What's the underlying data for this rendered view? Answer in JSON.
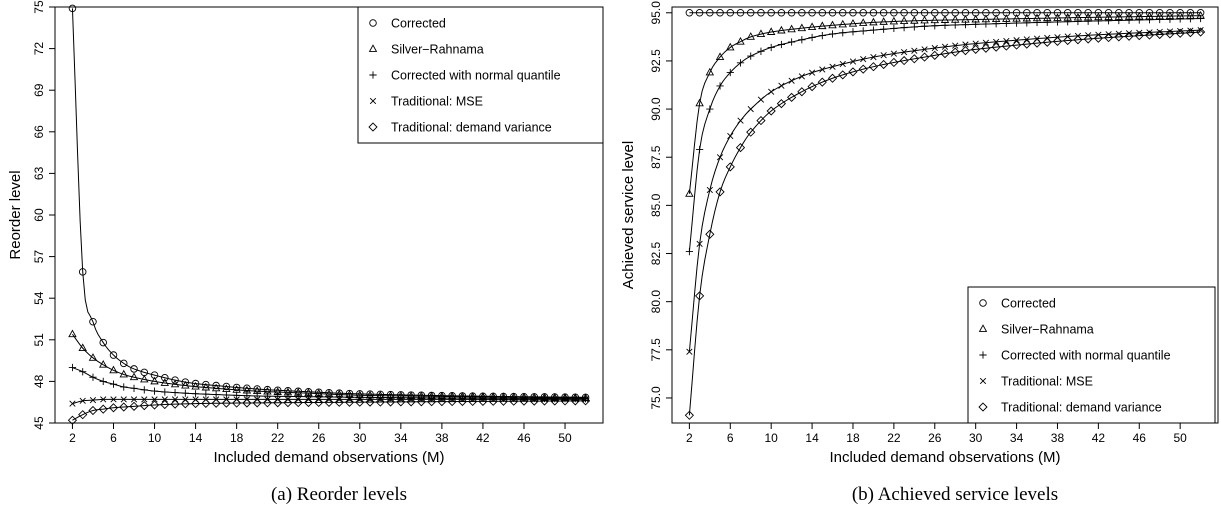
{
  "chart_data": [
    {
      "type": "line",
      "caption": "(a) Reorder levels",
      "xlabel": "Included demand observations (M)",
      "ylabel": "Reorder level",
      "xlim": [
        2,
        52
      ],
      "ylim": [
        45,
        75
      ],
      "xticks": [
        2,
        6,
        10,
        14,
        18,
        22,
        26,
        30,
        34,
        38,
        42,
        46,
        50
      ],
      "yticks": [
        45,
        48,
        51,
        54,
        57,
        60,
        63,
        66,
        69,
        72,
        75
      ],
      "legend_position": "top-right",
      "grid": false,
      "series": [
        {
          "name": "Corrected",
          "marker": "circle",
          "values": [
            [
              2,
              74.9
            ],
            [
              3,
              55.9
            ],
            [
              4,
              52.3
            ],
            [
              5,
              50.8
            ],
            [
              6,
              49.9
            ],
            [
              7,
              49.3
            ],
            [
              8,
              48.9
            ],
            [
              10,
              48.45
            ],
            [
              13,
              47.95
            ],
            [
              16,
              47.7
            ],
            [
              20,
              47.45
            ],
            [
              25,
              47.25
            ],
            [
              30,
              47.1
            ],
            [
              40,
              46.95
            ],
            [
              52,
              46.85
            ]
          ]
        },
        {
          "name": "Silver−Rahnama",
          "marker": "triangle",
          "values": [
            [
              2,
              51.4
            ],
            [
              3,
              50.4
            ],
            [
              4,
              49.7
            ],
            [
              5,
              49.2
            ],
            [
              6,
              48.8
            ],
            [
              7,
              48.5
            ],
            [
              8,
              48.3
            ],
            [
              10,
              48.0
            ],
            [
              13,
              47.7
            ],
            [
              16,
              47.5
            ],
            [
              20,
              47.3
            ],
            [
              25,
              47.15
            ],
            [
              30,
              47.0
            ],
            [
              40,
              46.9
            ],
            [
              52,
              46.8
            ]
          ]
        },
        {
          "name": "Corrected with normal quantile",
          "marker": "plus",
          "values": [
            [
              2,
              49.0
            ],
            [
              3,
              48.7
            ],
            [
              4,
              48.3
            ],
            [
              5,
              48.0
            ],
            [
              6,
              47.8
            ],
            [
              7,
              47.6
            ],
            [
              8,
              47.5
            ],
            [
              10,
              47.3
            ],
            [
              13,
              47.15
            ],
            [
              16,
              47.05
            ],
            [
              20,
              46.95
            ],
            [
              25,
              46.9
            ],
            [
              30,
              46.85
            ],
            [
              40,
              46.8
            ],
            [
              52,
              46.75
            ]
          ]
        },
        {
          "name": "Traditional: MSE",
          "marker": "cross",
          "values": [
            [
              2,
              46.4
            ],
            [
              3,
              46.6
            ],
            [
              4,
              46.65
            ],
            [
              5,
              46.7
            ],
            [
              6,
              46.7
            ],
            [
              8,
              46.7
            ],
            [
              10,
              46.7
            ],
            [
              16,
              46.7
            ],
            [
              25,
              46.7
            ],
            [
              40,
              46.7
            ],
            [
              52,
              46.7
            ]
          ]
        },
        {
          "name": "Traditional: demand variance",
          "marker": "diamond",
          "values": [
            [
              2,
              45.2
            ],
            [
              3,
              45.6
            ],
            [
              4,
              45.9
            ],
            [
              5,
              46.0
            ],
            [
              6,
              46.1
            ],
            [
              8,
              46.2
            ],
            [
              10,
              46.3
            ],
            [
              14,
              46.4
            ],
            [
              20,
              46.45
            ],
            [
              30,
              46.5
            ],
            [
              40,
              46.55
            ],
            [
              52,
              46.6
            ]
          ]
        }
      ]
    },
    {
      "type": "line",
      "caption": "(b) Achieved service levels",
      "xlabel": "Included demand observations (M)",
      "ylabel": "Achieved service level",
      "xlim": [
        2,
        52
      ],
      "ylim": [
        73.7,
        95.3
      ],
      "xticks": [
        2,
        6,
        10,
        14,
        18,
        22,
        26,
        30,
        34,
        38,
        42,
        46,
        50
      ],
      "yticks": [
        75.0,
        77.5,
        80.0,
        82.5,
        85.0,
        87.5,
        90.0,
        92.5,
        95.0
      ],
      "ytick_labels": [
        "75.0",
        "77.5",
        "80.0",
        "82.5",
        "85.0",
        "87.5",
        "90.0",
        "92.5",
        "95.0"
      ],
      "legend_position": "bottom-right",
      "grid": false,
      "series": [
        {
          "name": "Corrected",
          "marker": "circle",
          "values": [
            [
              2,
              95.0
            ],
            [
              10,
              95.0
            ],
            [
              20,
              95.0
            ],
            [
              30,
              95.0
            ],
            [
              40,
              95.0
            ],
            [
              52,
              95.0
            ]
          ]
        },
        {
          "name": "Silver−Rahnama",
          "marker": "triangle",
          "values": [
            [
              2,
              85.6
            ],
            [
              3,
              90.3
            ],
            [
              4,
              91.9
            ],
            [
              5,
              92.7
            ],
            [
              6,
              93.2
            ],
            [
              7,
              93.5
            ],
            [
              8,
              93.75
            ],
            [
              10,
              94.0
            ],
            [
              13,
              94.2
            ],
            [
              16,
              94.35
            ],
            [
              20,
              94.5
            ],
            [
              25,
              94.6
            ],
            [
              30,
              94.65
            ],
            [
              40,
              94.75
            ],
            [
              52,
              94.85
            ]
          ]
        },
        {
          "name": "Corrected with normal quantile",
          "marker": "plus",
          "values": [
            [
              2,
              82.6
            ],
            [
              3,
              87.9
            ],
            [
              4,
              90.0
            ],
            [
              5,
              91.2
            ],
            [
              6,
              91.9
            ],
            [
              7,
              92.4
            ],
            [
              8,
              92.75
            ],
            [
              10,
              93.2
            ],
            [
              13,
              93.6
            ],
            [
              16,
              93.9
            ],
            [
              20,
              94.1
            ],
            [
              25,
              94.3
            ],
            [
              30,
              94.4
            ],
            [
              40,
              94.55
            ],
            [
              52,
              94.7
            ]
          ]
        },
        {
          "name": "Traditional: MSE",
          "marker": "cross",
          "values": [
            [
              2,
              77.4
            ],
            [
              3,
              83.0
            ],
            [
              4,
              85.8
            ],
            [
              5,
              87.5
            ],
            [
              6,
              88.6
            ],
            [
              7,
              89.4
            ],
            [
              8,
              90.0
            ],
            [
              10,
              90.9
            ],
            [
              13,
              91.7
            ],
            [
              16,
              92.2
            ],
            [
              20,
              92.7
            ],
            [
              25,
              93.1
            ],
            [
              30,
              93.4
            ],
            [
              40,
              93.8
            ],
            [
              52,
              94.1
            ]
          ]
        },
        {
          "name": "Traditional: demand variance",
          "marker": "diamond",
          "values": [
            [
              2,
              74.1
            ],
            [
              3,
              80.3
            ],
            [
              4,
              83.5
            ],
            [
              5,
              85.7
            ],
            [
              6,
              87.0
            ],
            [
              7,
              88.0
            ],
            [
              8,
              88.8
            ],
            [
              10,
              89.9
            ],
            [
              13,
              90.9
            ],
            [
              16,
              91.6
            ],
            [
              20,
              92.2
            ],
            [
              25,
              92.7
            ],
            [
              30,
              93.1
            ],
            [
              40,
              93.6
            ],
            [
              52,
              94.0
            ]
          ]
        }
      ]
    }
  ]
}
